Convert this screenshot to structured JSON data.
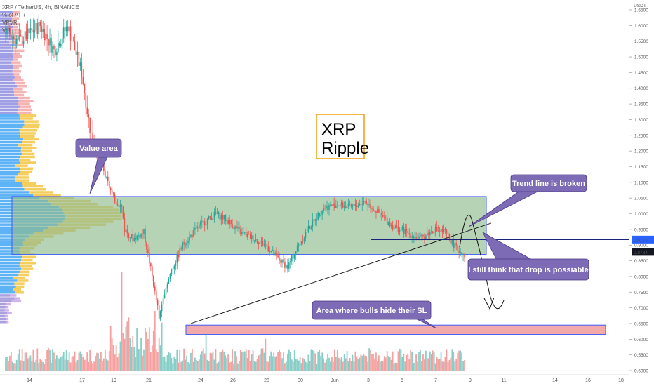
{
  "header": {
    "symbol_line": "XRP / TetherUS, 4h, BINANCE",
    "indicators": [
      "% of ATR",
      "VPVR",
      "Vol"
    ]
  },
  "title_box": {
    "line1": "XRP",
    "line2": "Ripple",
    "border_color": "#f39c12"
  },
  "annotations": {
    "value_area": "Value area",
    "trend_line_broken": "Trend line is broken",
    "drop_possible": "I still think that drop is possiable",
    "bulls_sl": "Area where bulls hide their SL"
  },
  "price_tags": {
    "level": "0.9176",
    "last": "0.8784"
  },
  "colors": {
    "up": "#26a69a",
    "down": "#ef5350",
    "value_area_fill": "#8fbc8f",
    "value_area_border": "#3d5afe",
    "sl_zone_fill": "#ef9a9a",
    "callout": "#7e6bb5",
    "level_line": "#1a237e",
    "vp_blue": "#42a5f5",
    "vp_yellow": "#f4c542"
  },
  "chart_data": {
    "type": "candlestick",
    "symbol": "XRP / TetherUS",
    "interval": "4h",
    "exchange": "BINANCE",
    "y_axis": {
      "unit": "USDT",
      "range": [
        0.5,
        1.65
      ],
      "ticks": [
        "1.6500",
        "1.6000",
        "1.5500",
        "1.5000",
        "1.4500",
        "1.4000",
        "1.3500",
        "1.3000",
        "1.2500",
        "1.2000",
        "1.1500",
        "1.1000",
        "1.0500",
        "1.0000",
        "0.9500",
        "0.9000",
        "0.8500",
        "0.8000",
        "0.7500",
        "0.7000",
        "0.6500",
        "0.6000",
        "0.5500",
        "0.5000"
      ]
    },
    "x_axis": {
      "ticks": [
        "14",
        "17",
        "19",
        "21",
        "24",
        "26",
        "28",
        "30",
        "Jun",
        "3",
        "5",
        "7",
        "9",
        "11",
        "14",
        "16",
        "18"
      ]
    },
    "candle_path": [
      [
        0,
        1.58
      ],
      [
        10,
        1.55
      ],
      [
        25,
        1.6
      ],
      [
        35,
        1.52
      ],
      [
        45,
        1.6
      ],
      [
        55,
        1.45
      ],
      [
        60,
        1.3
      ],
      [
        62,
        1.25
      ],
      [
        66,
        1.2
      ],
      [
        72,
        1.12
      ],
      [
        78,
        1.05
      ],
      [
        84,
        1.02
      ],
      [
        86,
        0.95
      ],
      [
        92,
        0.92
      ],
      [
        100,
        0.94
      ],
      [
        106,
        0.8
      ],
      [
        110,
        0.7
      ],
      [
        111,
        0.66
      ],
      [
        114,
        0.74
      ],
      [
        120,
        0.82
      ],
      [
        128,
        0.9
      ],
      [
        140,
        0.96
      ],
      [
        152,
        1.0
      ],
      [
        160,
        0.98
      ],
      [
        170,
        0.94
      ],
      [
        180,
        0.92
      ],
      [
        188,
        0.9
      ],
      [
        196,
        0.86
      ],
      [
        204,
        0.83
      ],
      [
        212,
        0.9
      ],
      [
        220,
        0.96
      ],
      [
        230,
        1.02
      ],
      [
        240,
        1.03
      ],
      [
        250,
        1.02
      ],
      [
        260,
        1.04
      ],
      [
        270,
        1.0
      ],
      [
        280,
        0.96
      ],
      [
        290,
        0.94
      ],
      [
        300,
        0.92
      ],
      [
        310,
        0.95
      ],
      [
        318,
        0.94
      ],
      [
        326,
        0.89
      ],
      [
        332,
        0.87
      ]
    ],
    "volume_profile_profile": "peak near 1.00–1.05",
    "value_area": {
      "low": 0.87,
      "high": 1.055
    },
    "sl_zone": {
      "low": 0.615,
      "high": 0.645
    },
    "horizontal_level": 0.9176,
    "last_price": 0.8784,
    "trend_line": {
      "from_price": 0.65,
      "to_price": 0.97
    }
  }
}
